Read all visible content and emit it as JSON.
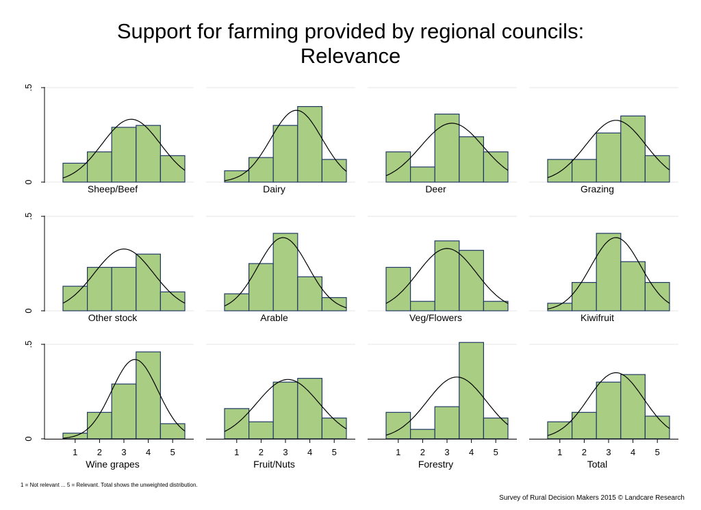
{
  "title": {
    "line1": "Support for farming provided by regional councils:",
    "line2": "Relevance"
  },
  "footnote": "1 = Not relevant ... 5 = Relevant. Total shows the unweighted distribution.",
  "credit": "Survey of Rural Decision Makers 2015 © Landcare Research",
  "chart_data": {
    "type": "bar",
    "layout": "small-multiples 3x4",
    "categories": [
      "1",
      "2",
      "3",
      "4",
      "5"
    ],
    "x_tick_labels": [
      "1",
      "2",
      "3",
      "4",
      "5"
    ],
    "y_tick_labels": [
      "0",
      ".5"
    ],
    "ylim": [
      0,
      0.5
    ],
    "xlim": [
      0,
      6
    ],
    "grid": true,
    "overlay": "normal density curve",
    "colors": {
      "bar_fill": "#a9cd82",
      "bar_stroke": "#1f3864",
      "curve": "#000000",
      "grid": "#e6e6e6"
    },
    "panels": [
      {
        "label": "Sheep/Beef",
        "values": [
          0.1,
          0.16,
          0.29,
          0.3,
          0.14
        ],
        "mean": 3.3,
        "sd": 1.2
      },
      {
        "label": "Dairy",
        "values": [
          0.06,
          0.13,
          0.3,
          0.4,
          0.12
        ],
        "mean": 3.45,
        "sd": 1.05
      },
      {
        "label": "Deer",
        "values": [
          0.16,
          0.08,
          0.36,
          0.24,
          0.16
        ],
        "mean": 3.2,
        "sd": 1.28
      },
      {
        "label": "Grazing",
        "values": [
          0.12,
          0.12,
          0.26,
          0.35,
          0.14
        ],
        "mean": 3.3,
        "sd": 1.22
      },
      {
        "label": "Other stock",
        "values": [
          0.13,
          0.23,
          0.23,
          0.3,
          0.1
        ],
        "mean": 3.0,
        "sd": 1.22
      },
      {
        "label": "Arable",
        "values": [
          0.09,
          0.25,
          0.41,
          0.18,
          0.07
        ],
        "mean": 2.9,
        "sd": 1.03
      },
      {
        "label": "Veg/Flowers",
        "values": [
          0.23,
          0.05,
          0.37,
          0.32,
          0.05
        ],
        "mean": 3.0,
        "sd": 1.21
      },
      {
        "label": "Kiwifruit",
        "values": [
          0.04,
          0.15,
          0.41,
          0.26,
          0.15
        ],
        "mean": 3.3,
        "sd": 1.03
      },
      {
        "label": "Wine grapes",
        "values": [
          0.03,
          0.14,
          0.29,
          0.46,
          0.08
        ],
        "mean": 3.45,
        "sd": 0.95
      },
      {
        "label": "Fruit/Nuts",
        "values": [
          0.16,
          0.09,
          0.3,
          0.32,
          0.11
        ],
        "mean": 3.1,
        "sd": 1.27
      },
      {
        "label": "Forestry",
        "values": [
          0.14,
          0.05,
          0.17,
          0.51,
          0.11
        ],
        "mean": 3.4,
        "sd": 1.22
      },
      {
        "label": "Total",
        "values": [
          0.09,
          0.14,
          0.3,
          0.34,
          0.12
        ],
        "mean": 3.3,
        "sd": 1.14
      }
    ]
  }
}
